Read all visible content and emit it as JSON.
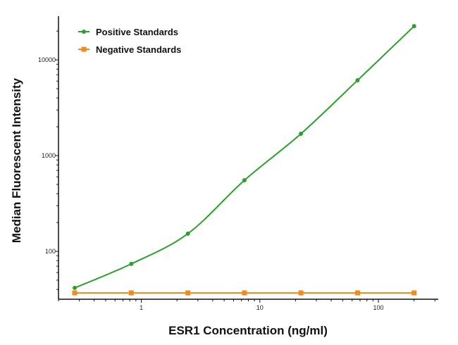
{
  "chart_data": {
    "type": "line",
    "title": "",
    "xlabel": "ESR1 Concentration (ng/ml)",
    "ylabel": "Median Fluorescent Intensity",
    "xscale": "log",
    "yscale": "log",
    "xlim": [
      0.2,
      320
    ],
    "ylim": [
      31.6,
      28600
    ],
    "x_ticks": [
      1,
      10,
      100
    ],
    "x_tick_labels": [
      "1",
      "10",
      "100"
    ],
    "y_ticks": [
      100,
      1000,
      10000
    ],
    "y_tick_labels": [
      "100",
      "1000",
      "10000"
    ],
    "grid": false,
    "legend_position": "top-left",
    "x": [
      0.274,
      0.823,
      2.47,
      7.41,
      22.2,
      66.7,
      200
    ],
    "series": [
      {
        "name": "Positive Standards",
        "color": "#2ca02c",
        "marker": "circle",
        "fit": "smooth-curve",
        "values": [
          41.5,
          74,
          153,
          553,
          1690,
          6120,
          22500
        ]
      },
      {
        "name": "Negative Standards",
        "color": "#f28a1c",
        "marker": "square",
        "fit": "line",
        "values": [
          36.8,
          36.8,
          36.8,
          36.8,
          36.8,
          36.8,
          36.8
        ]
      }
    ]
  }
}
